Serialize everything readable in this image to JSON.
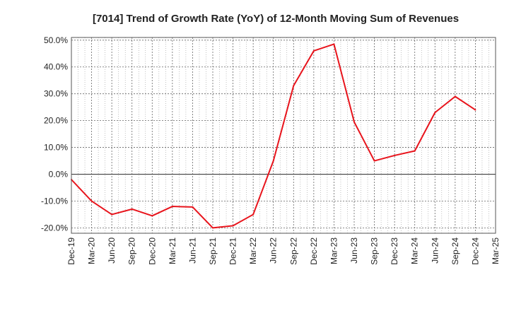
{
  "chart_data": {
    "type": "line",
    "title": "[7014]  Trend of Growth Rate (YoY) of 12-Month Moving Sum of Revenues",
    "xlabel": "",
    "ylabel": "",
    "x_tick_labels": [
      "Dec-19",
      "Mar-20",
      "Jun-20",
      "Sep-20",
      "Dec-20",
      "Mar-21",
      "Jun-21",
      "Sep-21",
      "Dec-21",
      "Mar-22",
      "Jun-22",
      "Sep-22",
      "Dec-22",
      "Mar-23",
      "Jun-23",
      "Sep-23",
      "Dec-23",
      "Mar-24",
      "Jun-24",
      "Sep-24",
      "Dec-24",
      "Mar-25"
    ],
    "y_tick_labels": [
      "50.0%",
      "40.0%",
      "30.0%",
      "20.0%",
      "10.0%",
      "0.0%",
      "-10.0%",
      "-20.0%"
    ],
    "y_ticks": [
      50,
      40,
      30,
      20,
      10,
      0,
      -10,
      -20
    ],
    "ylim": [
      -22,
      51
    ],
    "grid": true,
    "series": [
      {
        "color": "#e8141c",
        "x": [
          "Dec-19",
          "Mar-20",
          "Jun-20",
          "Sep-20",
          "Dec-20",
          "Mar-21",
          "Jun-21",
          "Sep-21",
          "Dec-21",
          "Mar-22",
          "Jun-22",
          "Sep-22",
          "Dec-22",
          "Mar-23",
          "Jun-23",
          "Sep-23",
          "Dec-23",
          "Mar-24",
          "Jun-24",
          "Sep-24",
          "Dec-24"
        ],
        "values": [
          -2.0,
          -10.0,
          -15.0,
          -13.0,
          -15.5,
          -12.0,
          -12.2,
          -20.0,
          -19.2,
          -15.0,
          5.0,
          33.0,
          46.0,
          48.5,
          19.5,
          5.0,
          7.0,
          8.7,
          23.0,
          29.0,
          24.0
        ]
      }
    ]
  }
}
